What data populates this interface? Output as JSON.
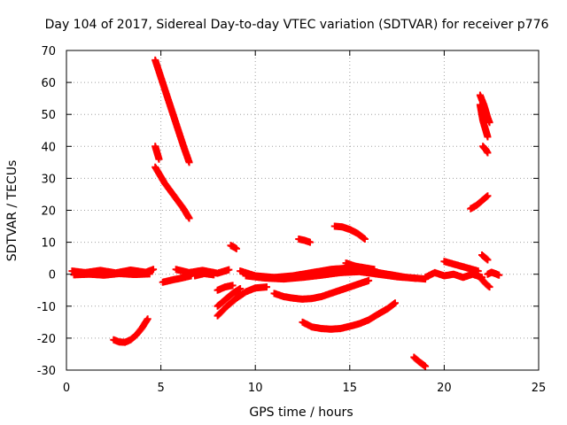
{
  "chart_data": {
    "type": "scatter",
    "title": "Day 104 of 2017, Sidereal Day-to-day VTEC variation (SDTVAR) for receiver p776",
    "xlabel": "GPS time / hours",
    "ylabel": "SDTVAR / TECUs",
    "xlim": [
      0,
      25
    ],
    "ylim": [
      -30,
      70
    ],
    "xticks": [
      0,
      5,
      10,
      15,
      20,
      25
    ],
    "yticks": [
      -30,
      -20,
      -10,
      0,
      10,
      20,
      30,
      40,
      50,
      60,
      70
    ],
    "grid": true,
    "marker": "plus",
    "color": "#ff0000",
    "series": [
      {
        "x": [
          0.3,
          1.0,
          1.8,
          2.6,
          3.4,
          4.2,
          4.6
        ],
        "y": [
          1.0,
          0.5,
          1.2,
          0.4,
          1.3,
          0.6,
          1.5
        ]
      },
      {
        "x": [
          0.4,
          1.2,
          2.0,
          2.8,
          3.6,
          4.4
        ],
        "y": [
          -0.2,
          0.0,
          -0.3,
          0.2,
          -0.1,
          0.1
        ]
      },
      {
        "x": [
          2.5,
          2.8,
          3.1,
          3.4,
          3.7,
          4.0,
          4.3
        ],
        "y": [
          -20.5,
          -21.2,
          -21.3,
          -20.5,
          -19.0,
          -16.8,
          -14.0
        ]
      },
      {
        "x": [
          4.7,
          5.2,
          5.7,
          6.2,
          6.5
        ],
        "y": [
          67.0,
          58.0,
          49.0,
          40.0,
          35.0
        ]
      },
      {
        "x": [
          4.7,
          4.8,
          4.9
        ],
        "y": [
          40.0,
          38.0,
          36.0
        ]
      },
      {
        "x": [
          4.7,
          5.2,
          5.7,
          6.2,
          6.5
        ],
        "y": [
          33.5,
          28.5,
          24.5,
          20.5,
          17.5
        ]
      },
      {
        "x": [
          5.1,
          5.6,
          6.1,
          6.6
        ],
        "y": [
          -2.5,
          -1.8,
          -1.2,
          -0.5
        ]
      },
      {
        "x": [
          5.8,
          6.5,
          7.2,
          8.0,
          8.6
        ],
        "y": [
          1.5,
          0.5,
          1.2,
          0.3,
          1.4
        ]
      },
      {
        "x": [
          6.8,
          7.3,
          7.8
        ],
        "y": [
          -0.5,
          0.2,
          -0.2
        ]
      },
      {
        "x": [
          8.0,
          8.4,
          8.8
        ],
        "y": [
          -5.0,
          -4.0,
          -3.5
        ]
      },
      {
        "x": [
          8.7,
          8.9,
          9.0
        ],
        "y": [
          9.0,
          8.4,
          8.0
        ]
      },
      {
        "x": [
          8.0,
          8.4,
          8.8,
          9.2
        ],
        "y": [
          -10.0,
          -8.0,
          -6.0,
          -4.5
        ]
      },
      {
        "x": [
          8.0,
          8.5,
          9.0,
          9.5,
          10.0,
          10.6
        ],
        "y": [
          -13.0,
          -10.0,
          -7.5,
          -5.5,
          -4.3,
          -4.0
        ]
      },
      {
        "x": [
          9.2,
          10.0,
          11.0,
          12.0,
          13.0,
          14.0,
          15.0,
          16.0,
          17.0,
          18.0,
          19.0
        ],
        "y": [
          1.0,
          -0.5,
          -1.0,
          -0.5,
          0.5,
          1.5,
          2.0,
          1.0,
          0.0,
          -1.0,
          -1.5
        ]
      },
      {
        "x": [
          9.5,
          10.5,
          11.5,
          12.5,
          13.5,
          14.5,
          15.5,
          16.5,
          17.5,
          18.5
        ],
        "y": [
          -0.5,
          -1.2,
          -1.5,
          -1.0,
          -0.3,
          0.5,
          0.8,
          0.0,
          -0.8,
          -1.3
        ]
      },
      {
        "x": [
          11.0,
          11.5,
          12.0,
          12.5,
          13.0,
          13.5,
          14.0,
          14.5,
          15.0,
          15.5,
          16.0
        ],
        "y": [
          -6.0,
          -7.0,
          -7.5,
          -7.8,
          -7.6,
          -7.0,
          -6.0,
          -5.0,
          -4.0,
          -3.0,
          -2.0
        ]
      },
      {
        "x": [
          12.3,
          12.6,
          12.9
        ],
        "y": [
          11.0,
          10.6,
          10.0
        ]
      },
      {
        "x": [
          14.2,
          14.6,
          15.0,
          15.4,
          15.8
        ],
        "y": [
          15.0,
          14.8,
          14.0,
          12.8,
          11.0
        ]
      },
      {
        "x": [
          12.5,
          13.0,
          13.5,
          14.0,
          14.5,
          15.0,
          15.5,
          16.0,
          16.5,
          17.0,
          17.4
        ],
        "y": [
          -15.0,
          -16.5,
          -17.0,
          -17.2,
          -17.0,
          -16.3,
          -15.5,
          -14.3,
          -12.5,
          -10.8,
          -9.0
        ]
      },
      {
        "x": [
          14.8,
          15.3,
          15.8,
          16.3
        ],
        "y": [
          3.5,
          2.5,
          2.0,
          1.5
        ]
      },
      {
        "x": [
          18.4,
          18.7,
          19.0
        ],
        "y": [
          -26.0,
          -27.5,
          -28.8
        ]
      },
      {
        "x": [
          19.0,
          19.5,
          20.0,
          20.5,
          21.0,
          21.5,
          22.0
        ],
        "y": [
          -1.0,
          0.5,
          -0.5,
          0.0,
          -1.0,
          0.0,
          -1.0
        ]
      },
      {
        "x": [
          20.0,
          20.6,
          21.2,
          21.8
        ],
        "y": [
          4.0,
          3.0,
          2.0,
          1.0
        ]
      },
      {
        "x": [
          21.4,
          21.7,
          22.0,
          22.3
        ],
        "y": [
          20.5,
          21.5,
          23.0,
          24.5
        ]
      },
      {
        "x": [
          21.9,
          22.0,
          22.1,
          22.2,
          22.3,
          22.4
        ],
        "y": [
          56.0,
          54.5,
          53.0,
          51.0,
          49.0,
          47.5
        ]
      },
      {
        "x": [
          21.9,
          22.05,
          22.2,
          22.3
        ],
        "y": [
          53.0,
          48.0,
          45.0,
          43.0
        ]
      },
      {
        "x": [
          22.05,
          22.2,
          22.3
        ],
        "y": [
          40.0,
          39.0,
          38.0
        ]
      },
      {
        "x": [
          22.0,
          22.2,
          22.3
        ],
        "y": [
          6.0,
          5.0,
          4.5
        ]
      },
      {
        "x": [
          21.9,
          22.2,
          22.4
        ],
        "y": [
          -1.0,
          -3.0,
          -4.0
        ]
      },
      {
        "x": [
          22.3,
          22.5,
          22.7,
          22.9
        ],
        "y": [
          0.0,
          0.6,
          0.2,
          -0.3
        ]
      }
    ]
  }
}
